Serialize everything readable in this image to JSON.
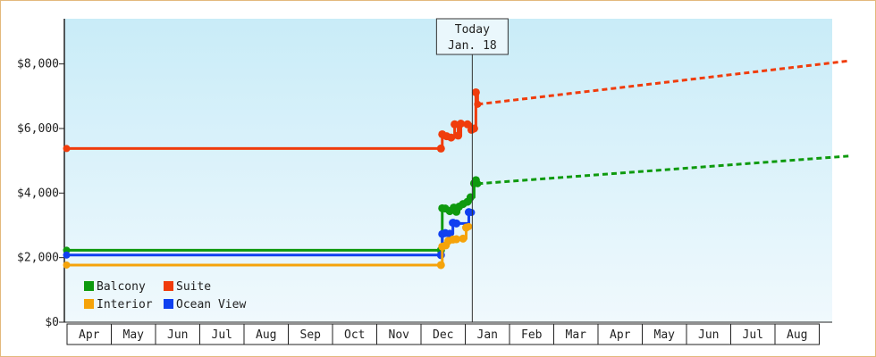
{
  "chart_data": {
    "type": "line",
    "title": "",
    "xlabel": "",
    "ylabel": "",
    "ylim": [
      0,
      9400
    ],
    "y_ticks": [
      0,
      2000,
      4000,
      6000,
      8000
    ],
    "y_tick_labels": [
      "$0",
      "$2,000",
      "$4,000",
      "$6,000",
      "$8,000"
    ],
    "x_months": [
      "Apr",
      "May",
      "Jun",
      "Jul",
      "Aug",
      "Sep",
      "Oct",
      "Nov",
      "Dec",
      "Jan",
      "Feb",
      "Mar",
      "Apr",
      "May",
      "Jun",
      "Jul",
      "Aug"
    ],
    "today_label": "Today",
    "today_date": "Jan. 18",
    "legend_position": "bottom-left",
    "grid": false,
    "colors": {
      "Balcony": "#0e9a0e",
      "Suite": "#f03c0c",
      "Interior": "#f5a30a",
      "Ocean View": "#1040f0",
      "today_line": "#333333"
    },
    "series": [
      {
        "name": "Suite",
        "history": [
          [
            -0.01,
            5380
          ],
          [
            8.45,
            5380
          ],
          [
            8.48,
            5820
          ],
          [
            8.58,
            5760
          ],
          [
            8.68,
            5720
          ],
          [
            8.76,
            6130
          ],
          [
            8.84,
            5780
          ],
          [
            8.9,
            6150
          ],
          [
            9.05,
            6130
          ],
          [
            9.14,
            5960
          ],
          [
            9.2,
            6000
          ],
          [
            9.24,
            7120
          ],
          [
            9.28,
            6750
          ]
        ],
        "forecast": [
          [
            9.28,
            6750
          ],
          [
            17.7,
            8100
          ]
        ]
      },
      {
        "name": "Balcony",
        "history": [
          [
            -0.01,
            2230
          ],
          [
            8.45,
            2230
          ],
          [
            8.48,
            3530
          ],
          [
            8.55,
            3520
          ],
          [
            8.65,
            3440
          ],
          [
            8.74,
            3550
          ],
          [
            8.8,
            3420
          ],
          [
            8.86,
            3580
          ],
          [
            8.95,
            3660
          ],
          [
            9.05,
            3730
          ],
          [
            9.12,
            3870
          ],
          [
            9.2,
            4300
          ],
          [
            9.24,
            4400
          ],
          [
            9.28,
            4290
          ]
        ],
        "forecast": [
          [
            9.28,
            4290
          ],
          [
            17.7,
            5150
          ]
        ]
      },
      {
        "name": "Ocean View",
        "history": [
          [
            -0.01,
            2080
          ],
          [
            8.45,
            2080
          ],
          [
            8.48,
            2730
          ],
          [
            8.55,
            2760
          ],
          [
            8.65,
            2740
          ],
          [
            8.72,
            3080
          ],
          [
            8.8,
            3060
          ],
          [
            9.08,
            3410
          ],
          [
            9.14,
            3400
          ]
        ]
      },
      {
        "name": "Interior",
        "history": [
          [
            -0.01,
            1770
          ],
          [
            8.45,
            1770
          ],
          [
            8.48,
            2340
          ],
          [
            8.56,
            2380
          ],
          [
            8.62,
            2520
          ],
          [
            8.72,
            2560
          ],
          [
            8.8,
            2570
          ],
          [
            8.95,
            2590
          ],
          [
            9.02,
            2930
          ],
          [
            9.08,
            2960
          ]
        ]
      }
    ],
    "legend": [
      "Balcony",
      "Suite",
      "Interior",
      "Ocean View"
    ]
  }
}
